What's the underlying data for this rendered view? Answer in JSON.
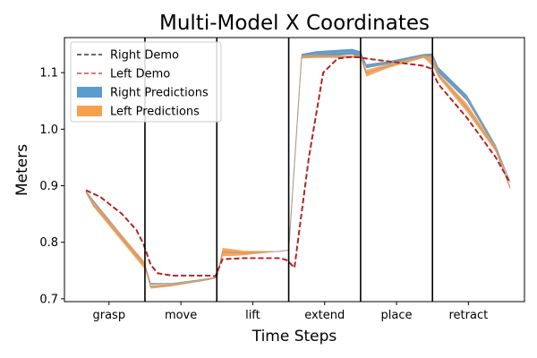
{
  "chart_data": {
    "type": "line",
    "title": "Multi-Model X Coordinates",
    "xlabel": "Time Steps",
    "ylabel": "Meters",
    "xlim": [
      0,
      6.4
    ],
    "ylim": [
      0.695,
      1.162
    ],
    "yticks": [
      0.7,
      0.8,
      0.9,
      1.0,
      1.1
    ],
    "ytick_labels": [
      "0.7",
      "0.8",
      "0.9",
      "1.0",
      "1.1"
    ],
    "phases": [
      "grasp",
      "move",
      "lift",
      "extend",
      "place",
      "retract"
    ],
    "phase_boundaries": [
      1.12,
      2.12,
      3.12,
      4.12,
      5.12
    ],
    "grid": false,
    "legend_position": "top-left",
    "colors": {
      "right_demo": "#555555",
      "left_demo": "#e06060",
      "right_pred": "#5b9bd0",
      "left_pred": "#f7a050",
      "demo_overlap": "#b22222",
      "boundary": "#000000"
    },
    "series": [
      {
        "name": "Right Demo",
        "style": "dashed",
        "x": [
          0.3,
          0.5,
          0.8,
          1.0,
          1.1,
          1.2,
          1.3,
          1.5,
          2.0,
          2.1,
          2.2,
          2.5,
          3.0,
          3.1,
          3.2,
          3.4,
          3.6,
          3.8,
          4.0,
          4.1,
          4.2,
          4.5,
          5.0,
          5.1,
          5.2,
          5.6,
          6.0,
          6.2
        ],
        "values": [
          0.892,
          0.88,
          0.85,
          0.822,
          0.797,
          0.76,
          0.745,
          0.741,
          0.741,
          0.74,
          0.77,
          0.772,
          0.772,
          0.768,
          0.755,
          0.95,
          1.1,
          1.125,
          1.128,
          1.127,
          1.125,
          1.12,
          1.112,
          1.107,
          1.08,
          1.02,
          0.95,
          0.905
        ]
      },
      {
        "name": "Left Demo",
        "style": "dashed",
        "x": [
          0.3,
          0.5,
          0.8,
          1.0,
          1.1,
          1.2,
          1.3,
          1.5,
          2.0,
          2.1,
          2.2,
          2.5,
          3.0,
          3.1,
          3.2,
          3.4,
          3.6,
          3.8,
          4.0,
          4.1,
          4.2,
          4.5,
          5.0,
          5.1,
          5.2,
          5.6,
          6.0,
          6.2
        ],
        "values": [
          0.892,
          0.88,
          0.85,
          0.822,
          0.797,
          0.76,
          0.745,
          0.741,
          0.741,
          0.74,
          0.77,
          0.772,
          0.772,
          0.768,
          0.755,
          0.95,
          1.1,
          1.125,
          1.128,
          1.127,
          1.125,
          1.12,
          1.112,
          1.107,
          1.08,
          1.02,
          0.95,
          0.905
        ]
      },
      {
        "name": "Right Predictions",
        "style": "band",
        "x": [
          0.3,
          0.4,
          1.12,
          1.2,
          1.5,
          2.0,
          2.12,
          2.2,
          2.5,
          3.0,
          3.12,
          3.3,
          3.5,
          4.0,
          4.12,
          4.2,
          4.5,
          5.0,
          5.12,
          5.2,
          5.6,
          6.0,
          6.2
        ],
        "low": [
          0.888,
          0.87,
          0.757,
          0.725,
          0.726,
          0.735,
          0.738,
          0.782,
          0.78,
          0.784,
          0.786,
          1.125,
          1.128,
          1.132,
          1.128,
          1.108,
          1.115,
          1.128,
          1.125,
          1.1,
          1.05,
          0.965,
          0.905
        ],
        "high": [
          0.892,
          0.875,
          0.763,
          0.728,
          0.728,
          0.736,
          0.738,
          0.785,
          0.782,
          0.784,
          0.786,
          1.133,
          1.138,
          1.142,
          1.138,
          1.115,
          1.12,
          1.133,
          1.134,
          1.11,
          1.06,
          0.972,
          0.908
        ]
      },
      {
        "name": "Left Predictions",
        "style": "band",
        "x": [
          0.3,
          0.4,
          1.12,
          1.2,
          1.5,
          2.0,
          2.12,
          2.2,
          2.5,
          3.0,
          3.12,
          3.3,
          3.5,
          4.0,
          4.12,
          4.2,
          4.5,
          5.0,
          5.12,
          5.2,
          5.6,
          6.0,
          6.2
        ],
        "low": [
          0.886,
          0.863,
          0.752,
          0.718,
          0.722,
          0.733,
          0.737,
          0.775,
          0.777,
          0.784,
          0.786,
          1.125,
          1.126,
          1.126,
          1.126,
          1.093,
          1.108,
          1.126,
          1.112,
          1.092,
          1.03,
          0.96,
          0.893
        ],
        "high": [
          0.892,
          0.872,
          0.765,
          0.724,
          0.726,
          0.735,
          0.738,
          0.79,
          0.785,
          0.784,
          0.786,
          1.13,
          1.131,
          1.13,
          1.131,
          1.105,
          1.115,
          1.13,
          1.128,
          1.1,
          1.045,
          0.968,
          0.9
        ]
      }
    ]
  }
}
